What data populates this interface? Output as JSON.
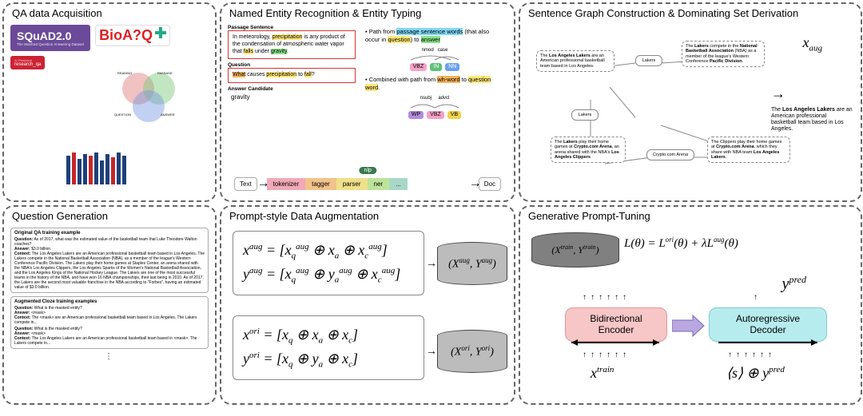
{
  "panels": {
    "p1": {
      "title": "QA data Acquisition"
    },
    "p2": {
      "title": "Named Entity Recognition & Entity Typing"
    },
    "p3": {
      "title": "Sentence Graph Construction & Dominating Set Derivation"
    },
    "p4": {
      "title": "Question Generation"
    },
    "p5": {
      "title": "Prompt-style Data Augmentation"
    },
    "p6": {
      "title": "Generative Prompt-Tuning"
    }
  },
  "qa": {
    "squad": "SQuAD2.0",
    "squad_sub": "The Stanford Question Answering Dataset",
    "bioasq_prefix": "Bio",
    "bioasq_suffix": "A?Q",
    "redbox_label": "research_qa",
    "barcode_colors": [
      "#1e3f7a",
      "#c62828",
      "#1e3f7a",
      "#1e3f7a",
      "#c62828",
      "#1e3f7a",
      "#1e3f7a",
      "#1e3f7a",
      "#c62828",
      "#1e3f7a",
      "#1e3f7a"
    ],
    "venn_labels": [
      "READING",
      "PASSAGE",
      "QUESTION",
      "ANSWER"
    ],
    "colors": {
      "squad_bg": "#6b4a99",
      "bioasq_red": "#d22"
    }
  },
  "ner": {
    "section_passage": "Passage Sentence",
    "passage_pre": "In meteorology, ",
    "passage_hl1": "precipitation",
    "passage_mid1": " is any product of the condensation of atmospheric water vapor that ",
    "passage_hl2": "falls",
    "passage_mid2": " under ",
    "passage_hl3": "gravity",
    "passage_end": ".",
    "section_question": "Question",
    "question_hl": "What",
    "question_mid": " causes ",
    "question_hl2": "precipitation",
    "question_mid2": " to ",
    "question_hl3": "fall",
    "question_end": "?",
    "section_answer": "Answer Candidate",
    "answer": "gravity",
    "bullet1": [
      "Path from ",
      "passage sentence words",
      " (that also occur in ",
      "question",
      ") to ",
      "answer"
    ],
    "pos_row1": [
      "VBZ",
      "IN",
      "NN"
    ],
    "pos_arrows1": [
      "nmod",
      "case"
    ],
    "bullet2": [
      "Combined with path from ",
      "wh-word",
      " to ",
      "question word",
      "."
    ],
    "pos_row2": [
      "WP",
      "VBZ",
      "VB"
    ],
    "pos_arrows2": [
      "nsubj",
      "advcl"
    ],
    "pipeline": {
      "left": "Text",
      "right": "Doc",
      "tag": "nlp",
      "steps": [
        "tokenizer",
        "tagger",
        "parser",
        "ner",
        "..."
      ],
      "step_colors": [
        "#f1a8b8",
        "#f2c38a",
        "#efe08a",
        "#bde39a",
        "#a9d8c8"
      ]
    }
  },
  "sgc": {
    "xaug": "x",
    "xaug_sup": "aug",
    "nodes": {
      "n1": "The <b>Los Angeles Lakers</b> are an American professional basketball team based in Los Angeles.",
      "n2": "Lakers",
      "n3": "The <b>Lakers</b> compete in the <b>National Basketball Association</b> (NBA) as a member of the league's Western Conference <b>Pacific Division</b>.",
      "n4": "Lakers",
      "n5": "The <b>Lakers</b> play their home games at <b>Crypto.com Arena</b>, an arena shared with the NBA's <b>Los Angeles Clippers</b>",
      "n6": "Crypto.com Arena",
      "n7": "The Clippers play their home games at <b>Crypto.com Arena</b>, which they share with NBA team <b>Los Angeles Lakers</b>.",
      "out": "The <b>Los Angeles Lakers</b> are an American professional basketball team based in Los Angeles."
    }
  },
  "qg": {
    "section1": "Original QA training example",
    "ex1": {
      "q_label": "Question:",
      "q": " As of 2017, what was the estimated value of the basketball team that Luke Theodore Walton coaches?",
      "a_label": "Answer:",
      "a": " $3.0 billion",
      "c_label": "Context:",
      "c": " The Los Angeles Lakers are an American professional basketball team based in Los Angeles. The Lakers compete in the National Basketball Association (NBA), as a member of the league's Western Conference Pacific Division. The Lakers play their home games at Staples Center, an arena shared with the NBA's Los Angeles Clippers, the Los Angeles Sparks of the Women's National Basketball Association, and the Los Angeles Kings of the National Hockey League. The Lakers are one of the most successful teams in the history of the NBA, and have won 16 NBA championships, their last being in 2010. As of 2017, the Lakers are the second most valuable franchise in the NBA according to \"Forbes\", having an estimated value of $3.0 billion."
    },
    "section2": "Augmented Cloze training examples",
    "ex2": {
      "q": " What is the masked entity?",
      "a": " <mask>",
      "c": " The <mask> are an American professional basketball team based in Los Angeles. The Lakers compete in..."
    },
    "ex3": {
      "q": " What is the masked entity?",
      "a": " <mask>",
      "c": " The Los Angeles Lakers are an American professional basketball team based in <mask>. The Lakers compete in..."
    }
  },
  "psa": {
    "eq_aug_x": "x^{aug} = [x_q^{aug} ⊕ x_a ⊕ x_c^{aug}]",
    "eq_aug_y": "y^{aug} = [x_q^{aug} ⊕ y_a^{aug} ⊕ x_c^{aug}]",
    "eq_ori_x": "x^{ori} = [x_q ⊕ x_a ⊕ x_c]",
    "eq_ori_y": "y^{ori} = [x_q ⊕ y_a ⊕ x_c]",
    "cyl_aug": "(X^{aug}, Y^{aug})",
    "cyl_ori": "(X^{ori}, Y^{ori})",
    "eq_pieces": {
      "aug_x": [
        "x",
        "aug",
        " = [ x",
        "q",
        "aug",
        " ⊕ x",
        "a",
        " ⊕ x",
        "c",
        "aug",
        " ]"
      ],
      "aug_y": [
        "y",
        "aug",
        " = [ x",
        "q",
        "aug",
        " ⊕ y",
        "a",
        "aug",
        " ⊕ x",
        "c",
        "aug",
        " ]"
      ],
      "ori_x": [
        "x",
        "ori",
        " = [ x",
        "q",
        " ⊕ x",
        "a",
        " ⊕ x",
        "c",
        " ]"
      ],
      "ori_y": [
        "y",
        "ori",
        " = [ x",
        "q",
        " ⊕ y",
        "a",
        " ⊕ x",
        "c",
        " ]"
      ]
    }
  },
  "gpt": {
    "cyl": "(X^{train}, Y^{train})",
    "loss": "L(θ) = L^{ori}(θ) + λL^{aug}(θ)",
    "ypred": "y^{pred}",
    "encoder": "Bidirectional\nEncoder",
    "decoder": "Autoregressive\nDecoder",
    "xtrain": "x^{train}",
    "sypred": "⟨s⟩ ⊕ y^{pred}",
    "colors": {
      "enc": "#f7c6c6",
      "dec": "#b7ecef"
    }
  }
}
